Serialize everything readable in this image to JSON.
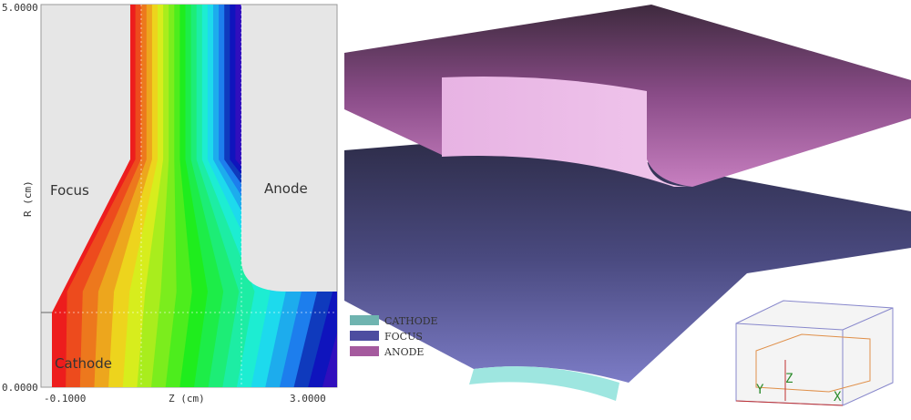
{
  "left_plot": {
    "y_axis_label": "R (cm)",
    "x_axis_label": "Z (cm)",
    "y_tick_top": "5.0000",
    "y_tick_bottom": "0.0000",
    "x_tick_left": "-0.1000",
    "x_tick_right": "3.0000",
    "region_labels": {
      "focus": "Focus",
      "anode": "Anode",
      "cathode": "Cathode"
    }
  },
  "right_view": {
    "legend": [
      "CATHODE",
      "FOCUS",
      "ANODE"
    ],
    "axis_labels": {
      "x": "X",
      "y": "Y",
      "z": "Z"
    }
  }
}
